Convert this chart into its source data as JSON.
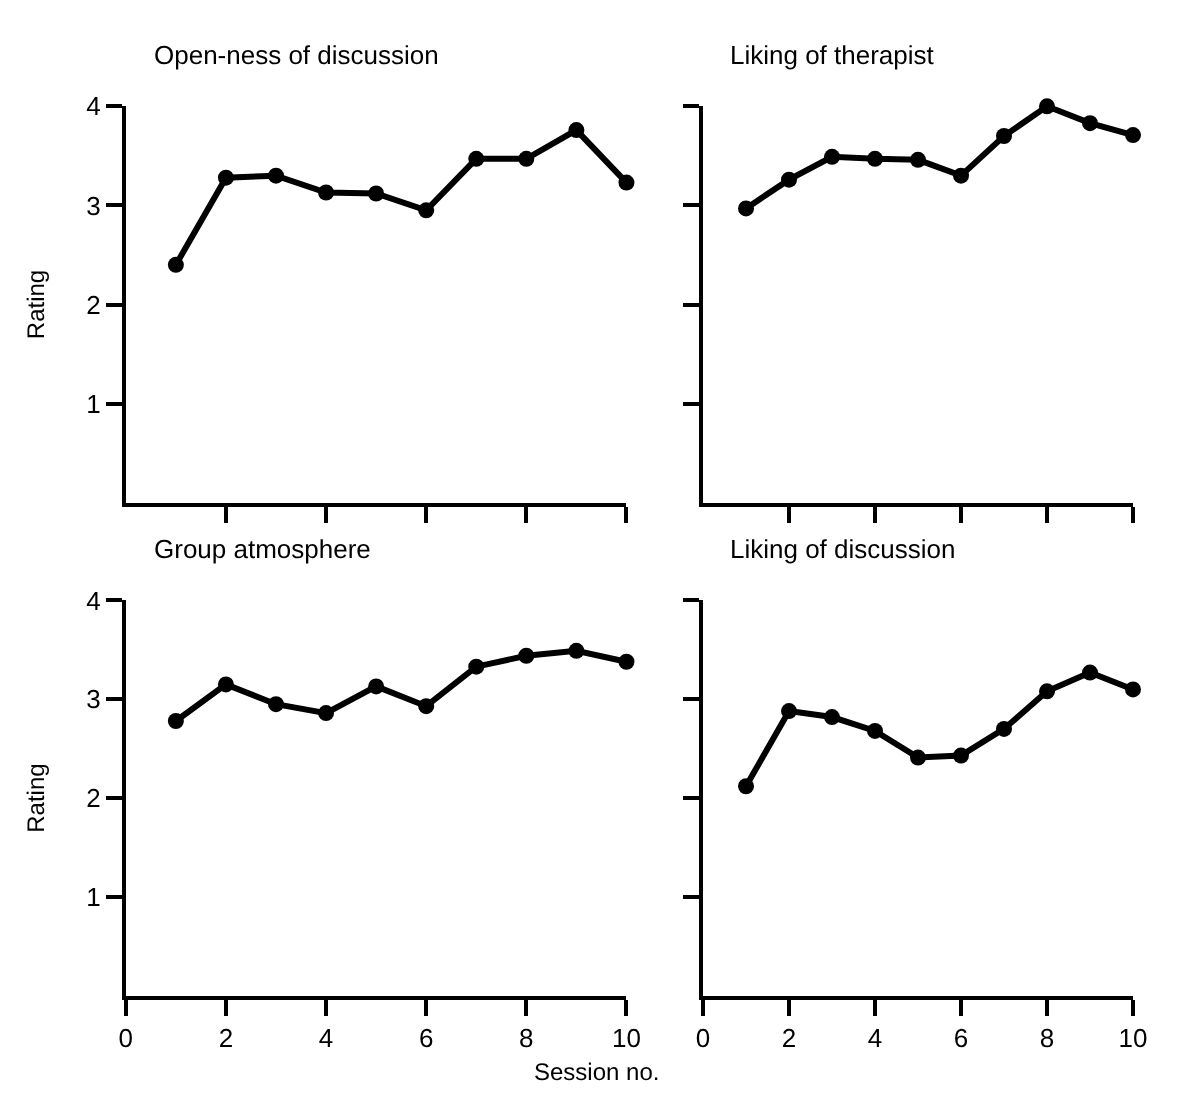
{
  "chart_data": [
    {
      "type": "line",
      "title": "Open-ness of discussion",
      "ylabel": "Rating",
      "x": [
        1,
        2,
        3,
        4,
        5,
        6,
        7,
        8,
        9,
        10
      ],
      "values": [
        2.4,
        3.28,
        3.3,
        3.13,
        3.12,
        2.95,
        3.47,
        3.47,
        3.76,
        3.23
      ],
      "color": "#000000",
      "marker": "circle",
      "line_style": "solid",
      "xlim": [
        0,
        10
      ],
      "ylim": [
        0,
        4
      ],
      "xticks": [
        {
          "value": 2,
          "label": null
        },
        {
          "value": 4,
          "label": null
        },
        {
          "value": 6,
          "label": null
        },
        {
          "value": 8,
          "label": null
        },
        {
          "value": 10,
          "label": null
        }
      ],
      "yticks": [
        1,
        2,
        3,
        4
      ],
      "tick_labels": "y"
    },
    {
      "type": "line",
      "title": "Liking of therapist",
      "x": [
        1,
        2,
        3,
        4,
        5,
        6,
        7,
        8,
        9,
        10
      ],
      "values": [
        2.97,
        3.26,
        3.49,
        3.47,
        3.46,
        3.3,
        3.7,
        4.0,
        3.83,
        3.71
      ],
      "color": "#000000",
      "marker": "circle",
      "line_style": "solid",
      "xlim": [
        0,
        10
      ],
      "ylim": [
        0,
        4
      ],
      "xticks": [
        {
          "value": 2,
          "label": null
        },
        {
          "value": 4,
          "label": null
        },
        {
          "value": 6,
          "label": null
        },
        {
          "value": 8,
          "label": null
        },
        {
          "value": 10,
          "label": null
        }
      ],
      "yticks": [
        {
          "value": 1,
          "label": null
        },
        {
          "value": 2,
          "label": null
        },
        {
          "value": 3,
          "label": null
        },
        {
          "value": 4,
          "label": null
        }
      ],
      "tick_labels": false
    },
    {
      "type": "line",
      "title": "Group atmosphere",
      "ylabel": "Rating",
      "xlabel": "Session no.",
      "x": [
        1,
        2,
        3,
        4,
        5,
        6,
        7,
        8,
        9,
        10
      ],
      "values": [
        2.78,
        3.15,
        2.95,
        2.86,
        3.13,
        2.93,
        3.33,
        3.44,
        3.49,
        3.38
      ],
      "color": "#000000",
      "marker": "circle",
      "line_style": "solid",
      "xlim": [
        0,
        10
      ],
      "ylim": [
        0,
        4
      ],
      "xticks": [
        0,
        2,
        4,
        6,
        8,
        10
      ],
      "yticks": [
        1,
        2,
        3,
        4
      ]
    },
    {
      "type": "line",
      "title": "Liking of discussion",
      "x": [
        1,
        2,
        3,
        4,
        5,
        6,
        7,
        8,
        9,
        10
      ],
      "values": [
        2.12,
        2.88,
        2.82,
        2.68,
        2.41,
        2.43,
        2.7,
        3.08,
        3.27,
        3.1
      ],
      "color": "#000000",
      "marker": "circle",
      "line_style": "solid",
      "xlim": [
        0,
        10
      ],
      "ylim": [
        0,
        4
      ],
      "xticks": [
        0,
        2,
        4,
        6,
        8,
        10
      ],
      "yticks": [
        {
          "value": 1,
          "label": null
        },
        {
          "value": 2,
          "label": null
        },
        {
          "value": 3,
          "label": null
        },
        {
          "value": 4,
          "label": null
        }
      ],
      "tick_labels": "x"
    }
  ]
}
